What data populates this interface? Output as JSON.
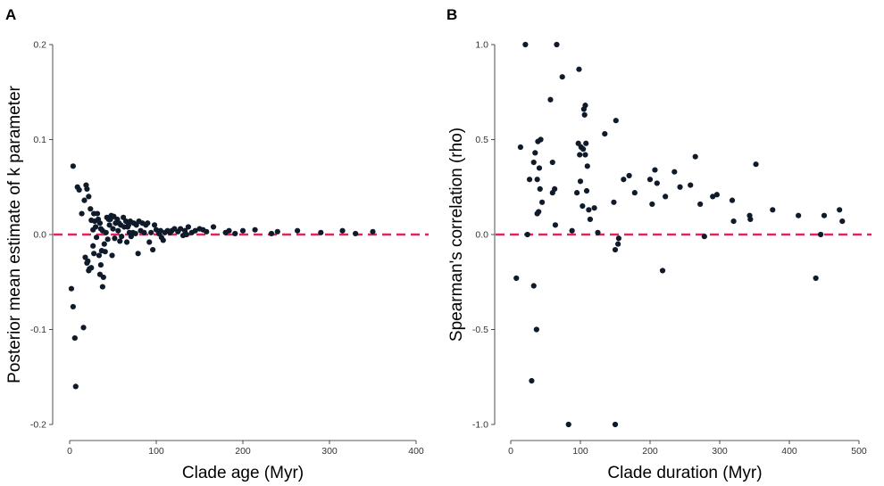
{
  "colors": {
    "points": "#0f1a2a",
    "reference_line": "#e0245e",
    "axis": "#222222",
    "background": "#ffffff"
  },
  "chart_data": [
    {
      "panel": "A",
      "type": "scatter",
      "xlabel": "Clade age (Myr)",
      "ylabel": "Posterior mean estimate of k parameter",
      "xlim": [
        0,
        400
      ],
      "ylim": [
        -0.2,
        0.2
      ],
      "xticks": [
        0,
        100,
        200,
        300,
        400
      ],
      "yticks": [
        -0.2,
        -0.1,
        0.0,
        0.1,
        0.2
      ],
      "xtick_labels": [
        "0",
        "100",
        "200",
        "300",
        "400"
      ],
      "ytick_labels": [
        "-0.2",
        "-0.1",
        "0.0",
        "0.1",
        "0.2"
      ],
      "reference_line": {
        "y": 0.0,
        "style": "dashed"
      },
      "grid": false,
      "points": [
        [
          2,
          -0.057
        ],
        [
          4,
          -0.076
        ],
        [
          4,
          0.072
        ],
        [
          6,
          -0.109
        ],
        [
          7,
          -0.16
        ],
        [
          9,
          0.05
        ],
        [
          11,
          0.047
        ],
        [
          14,
          0.022
        ],
        [
          16,
          -0.098
        ],
        [
          17,
          0.036
        ],
        [
          18,
          -0.024
        ],
        [
          19,
          0.052
        ],
        [
          20,
          -0.03
        ],
        [
          20,
          0.048
        ],
        [
          21,
          -0.028
        ],
        [
          22,
          0.04
        ],
        [
          22,
          -0.038
        ],
        [
          23,
          -0.036
        ],
        [
          24,
          0.027
        ],
        [
          25,
          0.015
        ],
        [
          25,
          -0.035
        ],
        [
          27,
          -0.012
        ],
        [
          27,
          0.005
        ],
        [
          28,
          0.022
        ],
        [
          28,
          -0.02
        ],
        [
          29,
          0.014
        ],
        [
          30,
          0.008
        ],
        [
          31,
          -0.003
        ],
        [
          32,
          0.022
        ],
        [
          33,
          0.016
        ],
        [
          34,
          -0.022
        ],
        [
          35,
          -0.042
        ],
        [
          35,
          0.012
        ],
        [
          36,
          -0.032
        ],
        [
          36,
          0.006
        ],
        [
          37,
          -0.017
        ],
        [
          38,
          -0.055
        ],
        [
          38,
          0.004
        ],
        [
          39,
          -0.045
        ],
        [
          40,
          -0.01
        ],
        [
          41,
          -0.018
        ],
        [
          42,
          0.002
        ],
        [
          43,
          0.018
        ],
        [
          44,
          -0.005
        ],
        [
          45,
          0.016
        ],
        [
          46,
          0.01
        ],
        [
          47,
          0.016
        ],
        [
          48,
          0.02
        ],
        [
          49,
          -0.022
        ],
        [
          50,
          0.006
        ],
        [
          51,
          0.019
        ],
        [
          52,
          -0.004
        ],
        [
          53,
          0.012
        ],
        [
          55,
          0.016
        ],
        [
          56,
          0.004
        ],
        [
          57,
          0.012
        ],
        [
          58,
          -0.007
        ],
        [
          59,
          0.01
        ],
        [
          60,
          -0.002
        ],
        [
          62,
          0.018
        ],
        [
          63,
          0.008
        ],
        [
          65,
          0.014
        ],
        [
          66,
          -0.008
        ],
        [
          67,
          0.008
        ],
        [
          68,
          0.01
        ],
        [
          69,
          0.002
        ],
        [
          70,
          0.014
        ],
        [
          71,
          -0.002
        ],
        [
          73,
          0.002
        ],
        [
          74,
          0.012
        ],
        [
          76,
          0.001
        ],
        [
          77,
          0.01
        ],
        [
          79,
          -0.02
        ],
        [
          80,
          0.014
        ],
        [
          82,
          0.004
        ],
        [
          84,
          0.012
        ],
        [
          86,
          0.002
        ],
        [
          88,
          0.01
        ],
        [
          90,
          0.012
        ],
        [
          92,
          -0.008
        ],
        [
          94,
          0.002
        ],
        [
          96,
          -0.016
        ],
        [
          98,
          0.01
        ],
        [
          100,
          0.005
        ],
        [
          103,
          0.001
        ],
        [
          105,
          0.004
        ],
        [
          106,
          -0.003
        ],
        [
          108,
          -0.006
        ],
        [
          110,
          0.002
        ],
        [
          113,
          0.004
        ],
        [
          116,
          0.002
        ],
        [
          118,
          0.004
        ],
        [
          121,
          0.006
        ],
        [
          125,
          0.003
        ],
        [
          128,
          0.006
        ],
        [
          131,
          -0.001
        ],
        [
          133,
          0.004
        ],
        [
          135,
          0.0
        ],
        [
          137,
          0.008
        ],
        [
          141,
          0.002
        ],
        [
          145,
          0.004
        ],
        [
          150,
          0.006
        ],
        [
          154,
          0.005
        ],
        [
          158,
          0.003
        ],
        [
          166,
          0.008
        ],
        [
          180,
          0.002
        ],
        [
          184,
          0.004
        ],
        [
          191,
          0.001
        ],
        [
          200,
          0.004
        ],
        [
          214,
          0.005
        ],
        [
          233,
          0.001
        ],
        [
          240,
          0.003
        ],
        [
          263,
          0.004
        ],
        [
          290,
          0.002
        ],
        [
          315,
          0.004
        ],
        [
          330,
          0.001
        ],
        [
          350,
          0.003
        ]
      ]
    },
    {
      "panel": "B",
      "type": "scatter",
      "xlabel": "Clade duration (Myr)",
      "ylabel": "Spearman's correlation (rho)",
      "xlim": [
        0,
        500
      ],
      "ylim": [
        -1.0,
        1.0
      ],
      "xticks": [
        0,
        100,
        200,
        300,
        400,
        500
      ],
      "yticks": [
        -1.0,
        -0.5,
        0.0,
        0.5,
        1.0
      ],
      "xtick_labels": [
        "0",
        "100",
        "200",
        "300",
        "400",
        "500"
      ],
      "ytick_labels": [
        "-1.0",
        "-0.5",
        "0.0",
        "0.5",
        "1.0"
      ],
      "reference_line": {
        "y": 0.0,
        "style": "dashed"
      },
      "grid": false,
      "points": [
        [
          8,
          -0.23
        ],
        [
          14,
          0.46
        ],
        [
          21,
          1.0
        ],
        [
          24,
          0.0
        ],
        [
          27,
          0.29
        ],
        [
          30,
          -0.77
        ],
        [
          33,
          -0.27
        ],
        [
          33,
          0.38
        ],
        [
          35,
          0.43
        ],
        [
          37,
          -0.5
        ],
        [
          38,
          0.29
        ],
        [
          38,
          0.11
        ],
        [
          39,
          0.49
        ],
        [
          40,
          0.12
        ],
        [
          41,
          0.35
        ],
        [
          42,
          0.24
        ],
        [
          43,
          0.5
        ],
        [
          45,
          0.17
        ],
        [
          57,
          0.71
        ],
        [
          60,
          0.38
        ],
        [
          60,
          0.22
        ],
        [
          63,
          0.24
        ],
        [
          64,
          0.05
        ],
        [
          66,
          1.0
        ],
        [
          74,
          0.83
        ],
        [
          83,
          -1.0
        ],
        [
          88,
          0.02
        ],
        [
          95,
          0.22
        ],
        [
          97,
          0.48
        ],
        [
          98,
          0.87
        ],
        [
          99,
          0.42
        ],
        [
          100,
          0.28
        ],
        [
          101,
          0.46
        ],
        [
          103,
          0.15
        ],
        [
          104,
          0.45
        ],
        [
          105,
          0.66
        ],
        [
          106,
          0.63
        ],
        [
          107,
          0.68
        ],
        [
          107,
          0.42
        ],
        [
          108,
          0.48
        ],
        [
          109,
          0.23
        ],
        [
          110,
          0.36
        ],
        [
          112,
          0.13
        ],
        [
          114,
          0.08
        ],
        [
          120,
          0.14
        ],
        [
          125,
          0.01
        ],
        [
          135,
          0.53
        ],
        [
          148,
          0.17
        ],
        [
          150,
          -0.08
        ],
        [
          150,
          -1.0
        ],
        [
          151,
          0.6
        ],
        [
          154,
          -0.05
        ],
        [
          155,
          -0.02
        ],
        [
          162,
          0.29
        ],
        [
          170,
          0.31
        ],
        [
          178,
          0.22
        ],
        [
          200,
          0.29
        ],
        [
          203,
          0.16
        ],
        [
          207,
          0.34
        ],
        [
          210,
          0.27
        ],
        [
          218,
          -0.19
        ],
        [
          222,
          0.2
        ],
        [
          235,
          0.33
        ],
        [
          243,
          0.25
        ],
        [
          258,
          0.26
        ],
        [
          265,
          0.41
        ],
        [
          272,
          0.16
        ],
        [
          278,
          -0.01
        ],
        [
          290,
          0.2
        ],
        [
          296,
          0.21
        ],
        [
          318,
          0.18
        ],
        [
          320,
          0.07
        ],
        [
          343,
          0.1
        ],
        [
          344,
          0.08
        ],
        [
          352,
          0.37
        ],
        [
          376,
          0.13
        ],
        [
          413,
          0.1
        ],
        [
          438,
          -0.23
        ],
        [
          445,
          0.0
        ],
        [
          450,
          0.1
        ],
        [
          472,
          0.13
        ],
        [
          476,
          0.07
        ]
      ]
    }
  ]
}
